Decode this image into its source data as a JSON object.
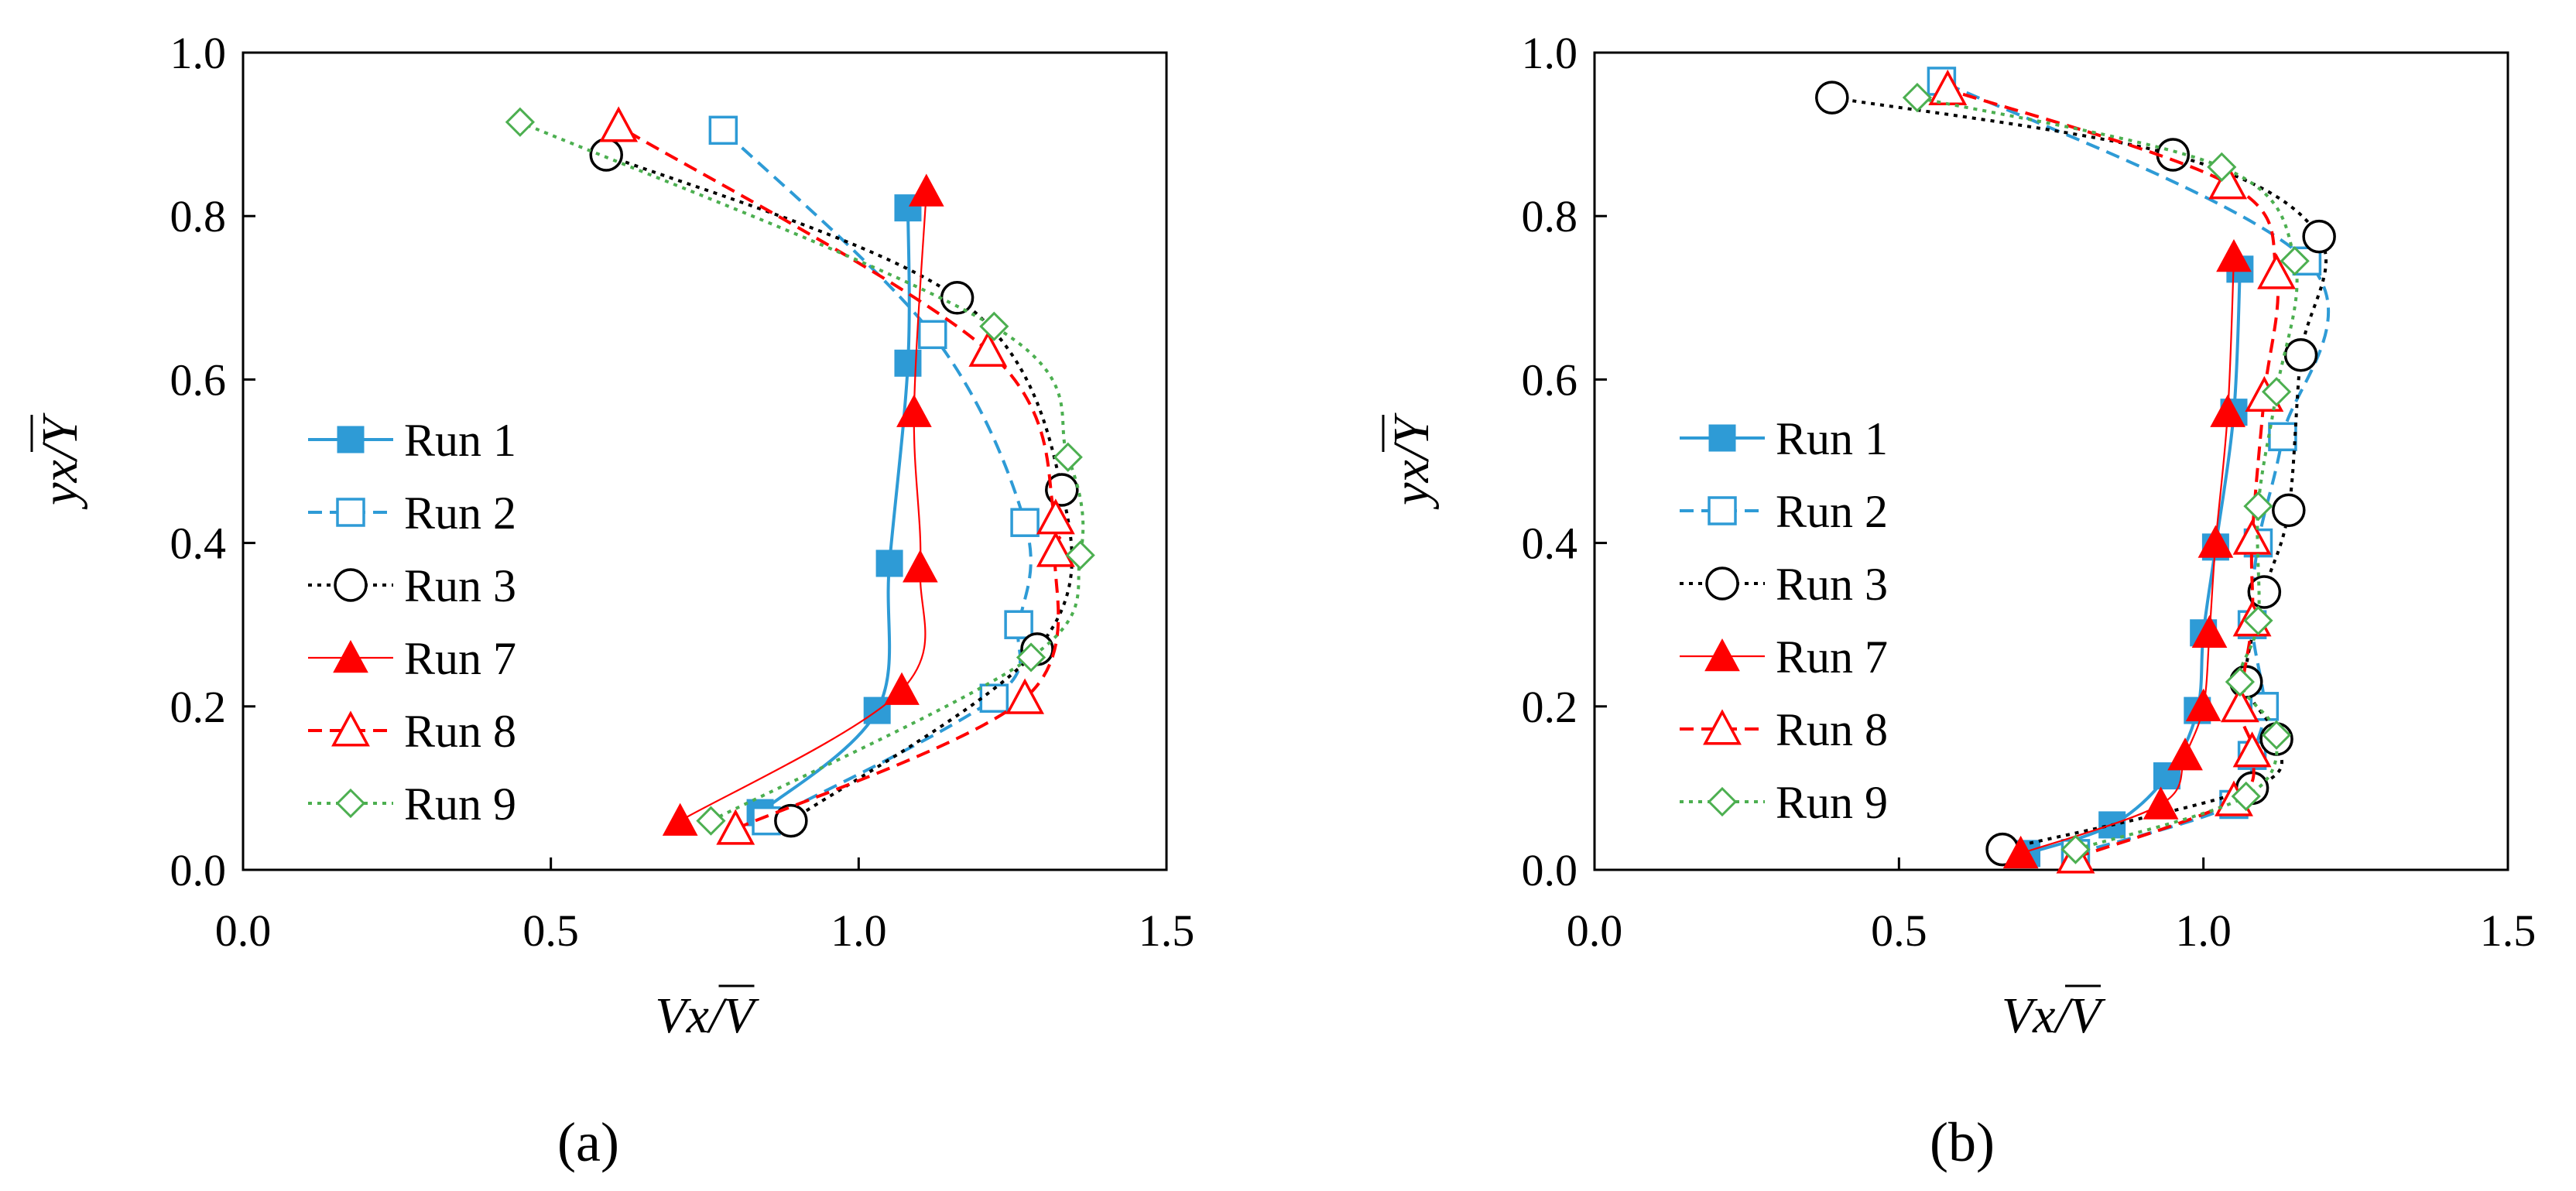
{
  "figure": {
    "panel_labels": [
      "(a)",
      "(b)"
    ]
  },
  "chart_data": [
    {
      "panel": "(a)",
      "type": "scatter",
      "title": "",
      "xlabel": "Vx/V",
      "ylabel": "yx/Y",
      "xlim": [
        0.0,
        1.5
      ],
      "ylim": [
        0.0,
        1.0
      ],
      "x_ticks": [
        "0.0",
        "0.5",
        "1.0",
        "1.5"
      ],
      "y_ticks": [
        "0.0",
        "0.2",
        "0.4",
        "0.6",
        "0.8",
        "1.0"
      ],
      "grid": false,
      "legend_position": "center-left",
      "series": [
        {
          "name": "Run 1",
          "color": "#2e9bd6",
          "marker": "filled-square",
          "line": "solid",
          "points": [
            [
              0.84,
              0.07
            ],
            [
              1.03,
              0.195
            ],
            [
              1.05,
              0.375
            ],
            [
              1.08,
              0.62
            ],
            [
              1.08,
              0.81
            ]
          ]
        },
        {
          "name": "Run 2",
          "color": "#2e9bd6",
          "marker": "open-square",
          "line": "dashed",
          "points": [
            [
              0.85,
              0.06
            ],
            [
              1.22,
              0.21
            ],
            [
              1.26,
              0.3
            ],
            [
              1.27,
              0.425
            ],
            [
              1.12,
              0.655
            ],
            [
              0.78,
              0.905
            ]
          ]
        },
        {
          "name": "Run 3",
          "color": "#000000",
          "marker": "open-circle",
          "line": "dotted",
          "points": [
            [
              0.89,
              0.06
            ],
            [
              1.29,
              0.27
            ],
            [
              1.33,
              0.465
            ],
            [
              1.16,
              0.7
            ],
            [
              0.59,
              0.875
            ]
          ]
        },
        {
          "name": "Run 7",
          "color": "#ff0000",
          "marker": "filled-triangle",
          "line": "thin-solid",
          "points": [
            [
              0.71,
              0.06
            ],
            [
              1.07,
              0.22
            ],
            [
              1.1,
              0.37
            ],
            [
              1.09,
              0.56
            ],
            [
              1.11,
              0.83
            ]
          ]
        },
        {
          "name": "Run 8",
          "color": "#ff0000",
          "marker": "open-triangle",
          "line": "dashed",
          "points": [
            [
              0.8,
              0.05
            ],
            [
              1.27,
              0.21
            ],
            [
              1.32,
              0.39
            ],
            [
              1.32,
              0.43
            ],
            [
              1.21,
              0.635
            ],
            [
              0.61,
              0.91
            ]
          ]
        },
        {
          "name": "Run 9",
          "color": "#4caf50",
          "marker": "open-diamond",
          "line": "dotted",
          "points": [
            [
              0.76,
              0.06
            ],
            [
              1.28,
              0.26
            ],
            [
              1.36,
              0.385
            ],
            [
              1.34,
              0.505
            ],
            [
              1.22,
              0.665
            ],
            [
              0.45,
              0.915
            ]
          ]
        }
      ]
    },
    {
      "panel": "(b)",
      "type": "scatter",
      "title": "",
      "xlabel": "Vx/V",
      "ylabel": "yx/Y",
      "xlim": [
        0.0,
        1.5
      ],
      "ylim": [
        0.0,
        1.0
      ],
      "x_ticks": [
        "0.0",
        "0.5",
        "1.0",
        "1.5"
      ],
      "y_ticks": [
        "0.0",
        "0.2",
        "0.4",
        "0.6",
        "0.8",
        "1.0"
      ],
      "grid": false,
      "legend_position": "center-left",
      "series": [
        {
          "name": "Run 1",
          "color": "#2e9bd6",
          "marker": "filled-square",
          "line": "solid",
          "points": [
            [
              0.71,
              0.02
            ],
            [
              0.85,
              0.055
            ],
            [
              0.94,
              0.115
            ],
            [
              0.99,
              0.195
            ],
            [
              1.0,
              0.29
            ],
            [
              1.02,
              0.395
            ],
            [
              1.05,
              0.56
            ],
            [
              1.06,
              0.735
            ]
          ]
        },
        {
          "name": "Run 2",
          "color": "#2e9bd6",
          "marker": "open-square",
          "line": "dashed",
          "points": [
            [
              0.79,
              0.02
            ],
            [
              1.05,
              0.08
            ],
            [
              1.08,
              0.14
            ],
            [
              1.1,
              0.2
            ],
            [
              1.08,
              0.3
            ],
            [
              1.09,
              0.4
            ],
            [
              1.13,
              0.53
            ],
            [
              1.17,
              0.745
            ],
            [
              0.57,
              0.965
            ]
          ]
        },
        {
          "name": "Run 3",
          "color": "#000000",
          "marker": "open-circle",
          "line": "dotted",
          "points": [
            [
              0.67,
              0.025
            ],
            [
              1.08,
              0.1
            ],
            [
              1.12,
              0.16
            ],
            [
              1.07,
              0.23
            ],
            [
              1.1,
              0.34
            ],
            [
              1.14,
              0.44
            ],
            [
              1.16,
              0.63
            ],
            [
              1.19,
              0.775
            ],
            [
              0.95,
              0.875
            ],
            [
              0.39,
              0.945
            ]
          ]
        },
        {
          "name": "Run 7",
          "color": "#ff0000",
          "marker": "filled-triangle",
          "line": "thin-solid",
          "points": [
            [
              0.7,
              0.02
            ],
            [
              0.93,
              0.08
            ],
            [
              0.97,
              0.14
            ],
            [
              1.0,
              0.2
            ],
            [
              1.01,
              0.29
            ],
            [
              1.02,
              0.4
            ],
            [
              1.04,
              0.56
            ],
            [
              1.05,
              0.75
            ]
          ]
        },
        {
          "name": "Run 8",
          "color": "#ff0000",
          "marker": "open-triangle",
          "line": "dashed",
          "points": [
            [
              0.79,
              0.015
            ],
            [
              1.05,
              0.085
            ],
            [
              1.08,
              0.145
            ],
            [
              1.06,
              0.2
            ],
            [
              1.08,
              0.305
            ],
            [
              1.08,
              0.405
            ],
            [
              1.1,
              0.58
            ],
            [
              1.12,
              0.73
            ],
            [
              1.04,
              0.84
            ],
            [
              0.58,
              0.955
            ]
          ]
        },
        {
          "name": "Run 9",
          "color": "#4caf50",
          "marker": "open-diamond",
          "line": "dotted",
          "points": [
            [
              0.79,
              0.025
            ],
            [
              1.07,
              0.09
            ],
            [
              1.12,
              0.165
            ],
            [
              1.06,
              0.23
            ],
            [
              1.09,
              0.305
            ],
            [
              1.09,
              0.445
            ],
            [
              1.12,
              0.585
            ],
            [
              1.15,
              0.745
            ],
            [
              1.03,
              0.86
            ],
            [
              0.53,
              0.945
            ]
          ]
        }
      ]
    }
  ]
}
